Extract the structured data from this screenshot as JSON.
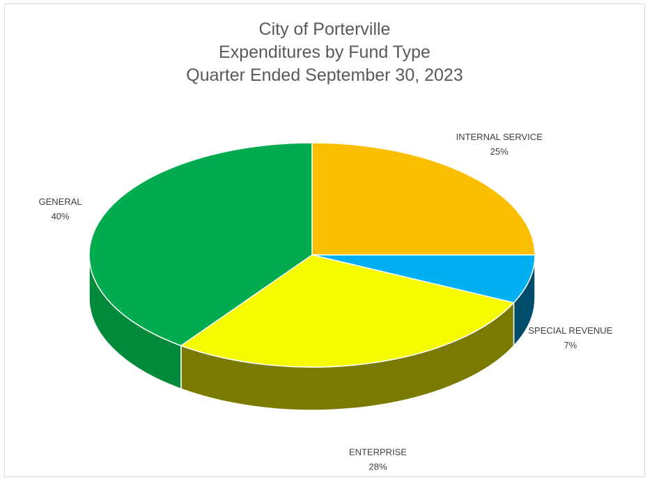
{
  "chart_data": {
    "type": "pie",
    "title": [
      "City of Porterville",
      "Expenditures by Fund Type",
      "Quarter Ended September 30, 2023"
    ],
    "categories": [
      "INTERNAL SERVICE",
      "SPECIAL REVENUE",
      "ENTERPRISE",
      "GENERAL"
    ],
    "values": [
      25,
      7,
      28,
      40
    ],
    "labels": [
      "25%",
      "7%",
      "28%",
      "40%"
    ],
    "colors": {
      "INTERNAL SERVICE": "#fbbf00",
      "SPECIAL REVENUE": "#00b0f0",
      "ENTERPRISE": "#f6fb00",
      "GENERAL": "#00ac4e"
    },
    "side_colors": {
      "INTERNAL SERVICE": "#b58a00",
      "SPECIAL REVENUE": "#004c6b",
      "ENTERPRISE": "#7a7a00",
      "GENERAL": "#008a3a"
    },
    "style": "3d-pie",
    "start_angle_deg": 0,
    "direction": "clockwise",
    "legend": "none",
    "data_label_position": "outside"
  }
}
